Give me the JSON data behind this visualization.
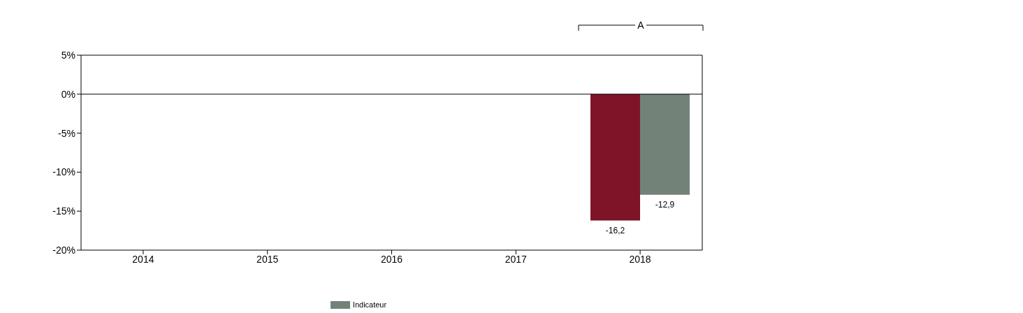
{
  "chart_data": {
    "type": "bar",
    "categories": [
      "2014",
      "2015",
      "2016",
      "2017",
      "2018"
    ],
    "series": [
      {
        "color": "#7f1327",
        "values": [
          null,
          null,
          null,
          null,
          -16.2
        ],
        "value_labels": [
          null,
          null,
          null,
          null,
          "-16,2"
        ]
      },
      {
        "name": "Indicateur",
        "color": "#738278",
        "values": [
          null,
          null,
          null,
          null,
          -12.9
        ],
        "value_labels": [
          null,
          null,
          null,
          null,
          "-12,9"
        ]
      }
    ],
    "ylim": [
      -20,
      5
    ],
    "yticks": [
      {
        "value": 5,
        "label": "5%"
      },
      {
        "value": 0,
        "label": "0%"
      },
      {
        "value": -5,
        "label": "-5%"
      },
      {
        "value": -10,
        "label": "-10%"
      },
      {
        "value": -15,
        "label": "-15%"
      },
      {
        "value": -20,
        "label": "-20%"
      }
    ],
    "ref_lines": [
      {
        "axis": "y",
        "value": 0,
        "color": "#000000"
      }
    ],
    "annotations": [
      "A"
    ],
    "grid": false,
    "legend": "bottom"
  }
}
